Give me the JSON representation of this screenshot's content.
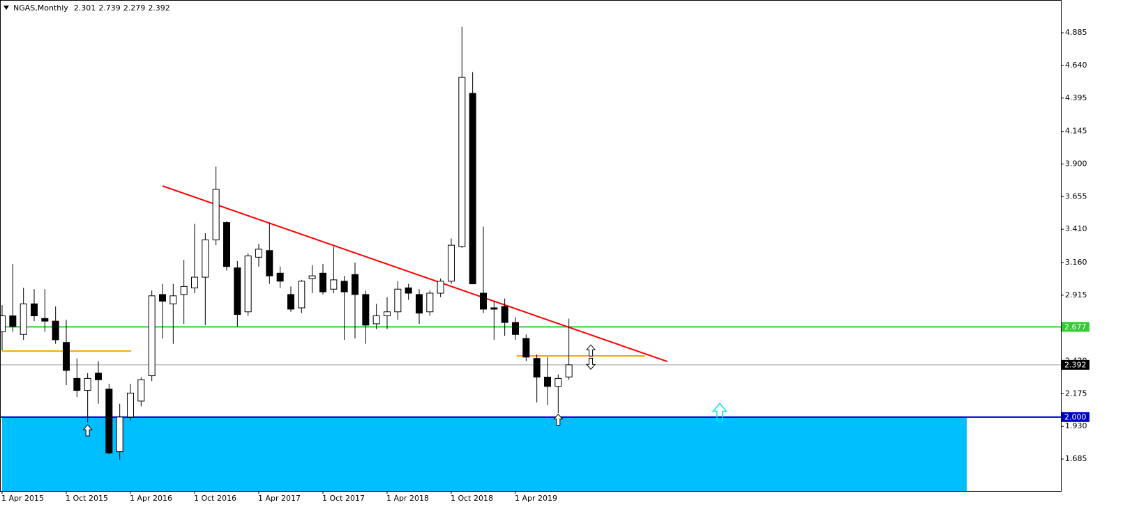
{
  "chart_data": {
    "type": "candlestick",
    "title": "NGAS,Monthly",
    "x": [
      "2015-04-01",
      "2015-05-01",
      "2015-06-01",
      "2015-07-01",
      "2015-08-01",
      "2015-09-01",
      "2015-10-01",
      "2015-11-01",
      "2015-12-01",
      "2016-01-01",
      "2016-02-01",
      "2016-03-01",
      "2016-04-01",
      "2016-05-01",
      "2016-06-01",
      "2016-07-01",
      "2016-08-01",
      "2016-09-01",
      "2016-10-01",
      "2016-11-01",
      "2016-12-01",
      "2017-01-01",
      "2017-02-01",
      "2017-03-01",
      "2017-04-01",
      "2017-05-01",
      "2017-06-01",
      "2017-07-01",
      "2017-08-01",
      "2017-09-01",
      "2017-10-01",
      "2017-11-01",
      "2017-12-01",
      "2018-01-01",
      "2018-02-01",
      "2018-03-01",
      "2018-04-01",
      "2018-05-01",
      "2018-06-01",
      "2018-07-01",
      "2018-08-01",
      "2018-09-01",
      "2018-10-01",
      "2018-11-01",
      "2018-12-01",
      "2019-01-01",
      "2019-02-01",
      "2019-03-01",
      "2019-04-01",
      "2019-05-01",
      "2019-06-01",
      "2019-07-01",
      "2019-08-01",
      "2019-09-01"
    ],
    "open": [
      2.64,
      2.76,
      2.62,
      2.85,
      2.74,
      2.72,
      2.56,
      2.29,
      2.2,
      2.33,
      2.21,
      1.74,
      2.0,
      2.12,
      2.31,
      2.92,
      2.85,
      2.92,
      2.97,
      3.05,
      3.33,
      3.46,
      3.12,
      2.79,
      3.2,
      3.25,
      3.08,
      2.92,
      2.82,
      3.04,
      3.08,
      2.96,
      3.02,
      3.07,
      2.92,
      2.7,
      2.76,
      2.79,
      2.97,
      2.92,
      2.79,
      2.93,
      3.02,
      3.28,
      4.43,
      2.93,
      2.82,
      2.83,
      2.71,
      2.59,
      2.44,
      2.3,
      2.23,
      2.301
    ],
    "high": [
      2.84,
      3.15,
      2.97,
      2.96,
      2.96,
      2.83,
      2.73,
      2.44,
      2.33,
      2.42,
      2.25,
      2.1,
      2.25,
      2.3,
      2.95,
      3.0,
      3.0,
      3.18,
      3.45,
      3.38,
      3.88,
      3.47,
      3.17,
      3.23,
      3.3,
      3.46,
      3.13,
      2.98,
      3.03,
      3.14,
      3.15,
      3.28,
      3.06,
      3.16,
      2.95,
      2.85,
      2.9,
      3.02,
      3.0,
      2.96,
      2.95,
      3.04,
      3.34,
      4.929,
      4.59,
      3.43,
      2.87,
      2.89,
      2.75,
      2.62,
      2.47,
      2.45,
      2.32,
      2.739
    ],
    "low": [
      2.5,
      2.64,
      2.58,
      2.72,
      2.64,
      2.55,
      2.24,
      2.15,
      1.96,
      2.1,
      1.72,
      1.68,
      1.97,
      2.08,
      2.27,
      2.59,
      2.55,
      2.7,
      2.93,
      2.69,
      3.29,
      3.1,
      2.68,
      2.76,
      3.13,
      3.0,
      2.97,
      2.79,
      2.78,
      2.93,
      2.92,
      2.93,
      2.58,
      2.59,
      2.55,
      2.66,
      2.66,
      2.73,
      2.88,
      2.7,
      2.76,
      2.9,
      3.0,
      3.27,
      3.0,
      2.78,
      2.58,
      2.61,
      2.58,
      2.42,
      2.11,
      2.09,
      2.03,
      2.279
    ],
    "close": [
      2.76,
      2.68,
      2.85,
      2.76,
      2.72,
      2.58,
      2.35,
      2.2,
      2.29,
      2.28,
      1.73,
      2.0,
      2.18,
      2.28,
      2.91,
      2.87,
      2.91,
      2.98,
      3.05,
      3.33,
      3.71,
      3.13,
      2.77,
      3.21,
      3.26,
      3.06,
      3.02,
      2.81,
      3.02,
      3.06,
      2.94,
      3.03,
      2.94,
      2.92,
      2.69,
      2.76,
      2.79,
      2.96,
      2.93,
      2.78,
      2.93,
      3.02,
      3.29,
      4.55,
      3.0,
      2.81,
      2.81,
      2.71,
      2.62,
      2.45,
      2.3,
      2.23,
      2.29,
      2.392
    ],
    "ylim": [
      1.445,
      5.131
    ],
    "yticks": [
      4.885,
      {
        "value": 4.64,
        "label": "4.640"
      },
      4.395,
      4.145,
      {
        "value": 3.9,
        "label": "3.900"
      },
      3.655,
      {
        "value": 3.41,
        "label": "3.410"
      },
      {
        "value": 3.16,
        "label": "3.160"
      },
      2.915,
      {
        "value": 2.42,
        "label": "2.420"
      },
      2.175,
      {
        "value": 1.93,
        "label": "1.930"
      },
      1.685
    ],
    "xticks": [
      {
        "value": "2015-04-01",
        "label": "1 Apr 2015"
      },
      {
        "value": "2015-10-01",
        "label": "1 Oct 2015"
      },
      {
        "value": "2016-04-01",
        "label": "1 Apr 2016"
      },
      {
        "value": "2016-10-01",
        "label": "1 Oct 2016"
      },
      {
        "value": "2017-04-01",
        "label": "1 Apr 2017"
      },
      {
        "value": "2017-10-01",
        "label": "1 Oct 2017"
      },
      {
        "value": "2018-04-01",
        "label": "1 Apr 2018"
      },
      {
        "value": "2018-10-01",
        "label": "1 Oct 2018"
      },
      {
        "value": "2019-04-01",
        "label": "1 Apr 2019"
      }
    ],
    "zone": {
      "x": [
        0,
        90.2
      ],
      "y": [
        1.445,
        2.0
      ],
      "color": "#00bfff"
    },
    "hlines": [
      {
        "value": 2.677,
        "color": "#32cd32",
        "width": 2
      },
      {
        "value": 2.392,
        "color": "#000000",
        "width": 1
      },
      {
        "value": 2.0,
        "color": "#0000cd",
        "width": 2,
        "label": "2.000"
      }
    ],
    "segments": [
      {
        "x": [
          15,
          62.2
        ],
        "y": [
          3.735,
          2.417
        ],
        "color": "#ff0000"
      },
      {
        "x": [
          0,
          12.07
        ],
        "y": [
          2.495,
          2.495
        ],
        "color": "#ffa500"
      },
      {
        "x": [
          48.1,
          60.1
        ],
        "y": [
          2.459,
          2.459
        ],
        "color": "#ffa500"
      }
    ],
    "arrows": [
      {
        "x": 8,
        "y": 1.9,
        "dir": "up",
        "color": "#000000"
      },
      {
        "x": 52,
        "y": 1.98,
        "dir": "up",
        "color": "#000000"
      },
      {
        "x": 67.1,
        "y": 2.035,
        "dir": "up",
        "color": "#00e5ee"
      },
      {
        "x": 55.05,
        "y": 2.5,
        "dir": "up",
        "color": "#000000"
      },
      {
        "x": 55.05,
        "y": 2.4,
        "dir": "down",
        "color": "#000000"
      }
    ]
  }
}
